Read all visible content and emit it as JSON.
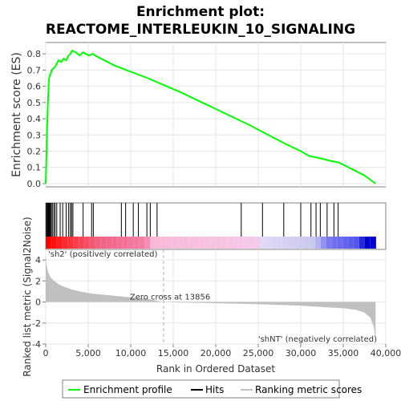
{
  "colors": {
    "es_line": "#00ff00",
    "hits": "#000000",
    "metric_fill": "#c0c0c0",
    "zero_cross": "#b0b0b0",
    "pos_text": "#cc0000",
    "neg_text": "#0000cc"
  },
  "chart_data": {
    "type": "line",
    "title": "Enrichment plot:",
    "subtitle": "REACTOME_INTERLEUKIN_10_SIGNALING",
    "xlabel": "Rank in Ordered Dataset",
    "ylabel": "Enrichment score (ES)",
    "ylabel2": "Ranked list metric (Signal2Noise)",
    "xlim": [
      0,
      40000
    ],
    "ylim": [
      -0.02,
      0.87
    ],
    "ylim2": [
      -4,
      5
    ],
    "x_ticks": [
      "0",
      "5,000",
      "10,000",
      "15,000",
      "20,000",
      "25,000",
      "30,000",
      "35,000",
      "40,000"
    ],
    "x_tick_values": [
      0,
      5000,
      10000,
      15000,
      20000,
      25000,
      30000,
      35000,
      40000
    ],
    "y_ticks": [
      "0.0",
      "0.1",
      "0.2",
      "0.3",
      "0.4",
      "0.5",
      "0.6",
      "0.7",
      "0.8"
    ],
    "y_tick_values": [
      0.0,
      0.1,
      0.2,
      0.3,
      0.4,
      0.5,
      0.6,
      0.7,
      0.8
    ],
    "y2_ticks": [
      "-4",
      "-2",
      "0",
      "2",
      "4"
    ],
    "y2_tick_values": [
      -4,
      -2,
      0,
      2,
      4
    ],
    "es_curve": {
      "x": [
        0,
        50,
        100,
        150,
        200,
        250,
        300,
        350,
        400,
        500,
        600,
        700,
        900,
        1100,
        1300,
        1500,
        1800,
        2100,
        2400,
        2700,
        2900,
        3000,
        3100,
        3500,
        4000,
        4400,
        4700,
        5100,
        5500,
        5800,
        8000,
        10000,
        12000,
        16000,
        20000,
        24000,
        28000,
        30000,
        31000,
        32000,
        33500,
        34500,
        36000,
        37500,
        38800
      ],
      "y": [
        0.0,
        0.1,
        0.2,
        0.32,
        0.4,
        0.48,
        0.55,
        0.62,
        0.65,
        0.67,
        0.68,
        0.7,
        0.71,
        0.72,
        0.74,
        0.76,
        0.75,
        0.77,
        0.76,
        0.79,
        0.8,
        0.81,
        0.82,
        0.81,
        0.79,
        0.81,
        0.8,
        0.79,
        0.8,
        0.79,
        0.73,
        0.69,
        0.65,
        0.56,
        0.46,
        0.36,
        0.25,
        0.2,
        0.17,
        0.16,
        0.14,
        0.13,
        0.09,
        0.05,
        0.0
      ]
    },
    "hits": [
      80,
      150,
      220,
      300,
      380,
      460,
      550,
      650,
      780,
      950,
      1100,
      1300,
      1700,
      2000,
      2400,
      2700,
      2900,
      3050,
      3200,
      4400,
      5400,
      5600,
      8900,
      9400,
      10300,
      10900,
      11900,
      12300,
      13100,
      23000,
      25500,
      28000,
      30000,
      31200,
      31800,
      32300,
      33100,
      33900,
      34400
    ],
    "metric_curve": {
      "x": [
        0,
        100,
        300,
        600,
        1000,
        1500,
        2000,
        3000,
        4000,
        5000,
        6000,
        8000,
        10000,
        12000,
        13856,
        16000,
        20000,
        25000,
        30000,
        33000,
        35000,
        36500,
        37500,
        38200,
        38600,
        38800
      ],
      "y": [
        4.6,
        3.5,
        2.8,
        2.3,
        2.0,
        1.7,
        1.5,
        1.2,
        1.0,
        0.85,
        0.75,
        0.6,
        0.45,
        0.3,
        0.0,
        -0.05,
        -0.12,
        -0.2,
        -0.35,
        -0.5,
        -0.6,
        -0.75,
        -1.0,
        -1.5,
        -2.4,
        -3.7
      ]
    },
    "zero_cross_label": "Zero cross at 13856",
    "zero_cross_x": 13856,
    "pos_label": "'sh2' (positively correlated)",
    "neg_label": "'shNT' (negatively correlated)",
    "legend": [
      "Enrichment profile",
      "Hits",
      "Ranking metric scores"
    ],
    "legend_position": "bottom"
  }
}
